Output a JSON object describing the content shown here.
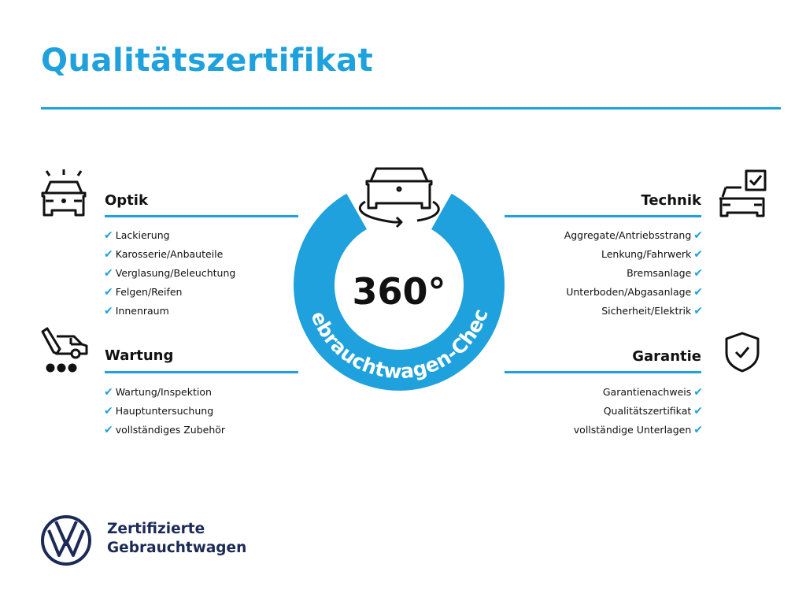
{
  "title": "Qualitätszertifikat",
  "center": {
    "degrees": "360°",
    "ring_text": "Gebrauchtwagen-Check"
  },
  "sections": {
    "optik": {
      "heading": "Optik",
      "items": [
        "Lackierung",
        "Karosserie/Anbauteile",
        "Verglasung/Beleuchtung",
        "Felgen/Reifen",
        "Innenraum"
      ]
    },
    "wartung": {
      "heading": "Wartung",
      "items": [
        "Wartung/Inspektion",
        "Hauptuntersuchung",
        "vollständiges Zubehör"
      ]
    },
    "technik": {
      "heading": "Technik",
      "items": [
        "Aggregate/Antriebsstrang",
        "Lenkung/Fahrwerk",
        "Bremsanlage",
        "Unterboden/Abgasanlage",
        "Sicherheit/Elektrik"
      ]
    },
    "garantie": {
      "heading": "Garantie",
      "items": [
        "Garantienachweis",
        "Qualitätszertifikat",
        "vollständige Unterlagen"
      ]
    }
  },
  "check_glyph": "✔",
  "footer": {
    "line1": "Zertifizierte",
    "line2": "Gebrauchtwagen"
  },
  "colors": {
    "accent": "#1ea1dc",
    "brand_navy": "#1b2a57",
    "text": "#111111"
  }
}
